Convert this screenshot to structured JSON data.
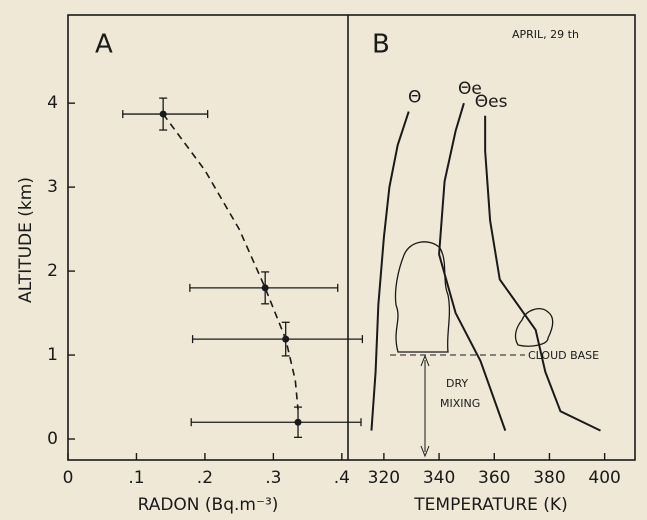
{
  "chart_data": [
    {
      "type": "scatter",
      "panel": "A",
      "color": "#1a1a1a",
      "xlabel": "RADON (Bq.m⁻³)",
      "ylabel": "ALTITUDE (km)",
      "x": [
        0.139,
        0.288,
        0.318,
        0.336
      ],
      "y": [
        3.87,
        1.8,
        1.19,
        0.2
      ],
      "x_low": [
        0.08,
        0.178,
        0.182,
        0.18
      ],
      "x_high": [
        0.204,
        0.394,
        0.43,
        0.428
      ],
      "yerr": [
        0.19,
        0.19,
        0.2,
        0.18
      ],
      "curve": {
        "x": [
          0.139,
          0.2,
          0.25,
          0.288,
          0.318,
          0.332,
          0.336
        ],
        "y": [
          3.87,
          3.2,
          2.5,
          1.8,
          1.19,
          0.7,
          0.35
        ]
      },
      "xlim": [
        0,
        0.409
      ],
      "ylim": [
        -0.25,
        5.05
      ],
      "xticks": [
        0,
        {
          "value": 0.1,
          "label": ".1"
        },
        {
          "value": 0.2,
          "label": ".2"
        },
        {
          "value": 0.3,
          "label": ".3"
        },
        {
          "value": 0.4,
          "label": ".4"
        }
      ],
      "yticks": [
        0,
        1,
        2,
        3,
        4
      ]
    },
    {
      "type": "line",
      "panel": "B",
      "xlabel": "TEMPERATURE (K)",
      "annotations": [
        "APRIL, 29 th",
        "CLOUD BASE",
        "DRY",
        "MIXING"
      ],
      "series": [
        {
          "name": "Θ",
          "color": "#1a1a1a",
          "x": [
            315.5,
            317,
            318,
            320,
            322,
            325,
            329
          ],
          "values": [
            0.1,
            0.8,
            1.6,
            2.4,
            3.0,
            3.5,
            3.9
          ]
        },
        {
          "name": "Θe",
          "color": "#1a1a1a",
          "x": [
            364,
            355,
            346,
            340,
            342,
            346,
            349
          ],
          "values": [
            0.1,
            0.93,
            1.5,
            2.2,
            3.07,
            3.67,
            4.0
          ]
        },
        {
          "name": "Θes",
          "color": "#1a1a1a",
          "x": [
            398.5,
            384,
            378.5,
            375,
            362,
            358.5,
            356.7,
            356.7
          ],
          "values": [
            0.1,
            0.33,
            0.8,
            1.3,
            1.9,
            2.6,
            3.43,
            3.85
          ]
        }
      ],
      "xlim": [
        307,
        411
      ],
      "ylim": [
        -0.25,
        5.05
      ],
      "xticks": [
        320,
        340,
        360,
        380,
        400
      ]
    }
  ]
}
